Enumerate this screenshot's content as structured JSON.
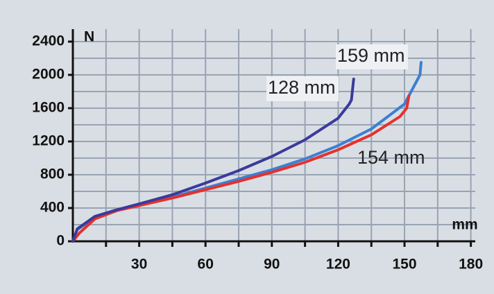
{
  "chart_data": {
    "type": "line",
    "x_label": "mm",
    "y_label": "N",
    "xlim": [
      0,
      182
    ],
    "ylim": [
      0,
      2550
    ],
    "xticks": [
      30,
      60,
      90,
      120,
      150,
      180
    ],
    "yticks": [
      0,
      400,
      800,
      1200,
      1600,
      2000,
      2400
    ],
    "xgrid": [
      15,
      30,
      45,
      60,
      75,
      90,
      105,
      120,
      135,
      150,
      165,
      180
    ],
    "ygrid": [
      200,
      400,
      600,
      800,
      1000,
      1200,
      1400,
      1600,
      1800,
      2000,
      2200,
      2400
    ],
    "grid": true,
    "series": [
      {
        "name": "159 mm",
        "color": "#3d7fd2",
        "x": [
          0,
          2,
          10,
          20,
          30,
          45,
          60,
          75,
          90,
          105,
          120,
          135,
          150,
          155,
          157,
          157.5
        ],
        "values": [
          0,
          140,
          290,
          370,
          430,
          530,
          640,
          750,
          860,
          990,
          1150,
          1350,
          1650,
          1900,
          2000,
          2150
        ]
      },
      {
        "name": "154 mm",
        "color": "#e5312b",
        "x": [
          0,
          3,
          10,
          20,
          30,
          45,
          60,
          75,
          90,
          105,
          120,
          135,
          148,
          151,
          152
        ],
        "values": [
          0,
          100,
          270,
          370,
          430,
          520,
          620,
          720,
          830,
          950,
          1100,
          1280,
          1500,
          1600,
          1750
        ]
      },
      {
        "name": "128 mm",
        "color": "#3b3a9c",
        "x": [
          0,
          2,
          10,
          20,
          30,
          45,
          60,
          75,
          90,
          105,
          120,
          125,
          126,
          127
        ],
        "values": [
          0,
          150,
          300,
          380,
          450,
          560,
          700,
          850,
          1020,
          1220,
          1480,
          1650,
          1700,
          1950
        ]
      }
    ]
  }
}
